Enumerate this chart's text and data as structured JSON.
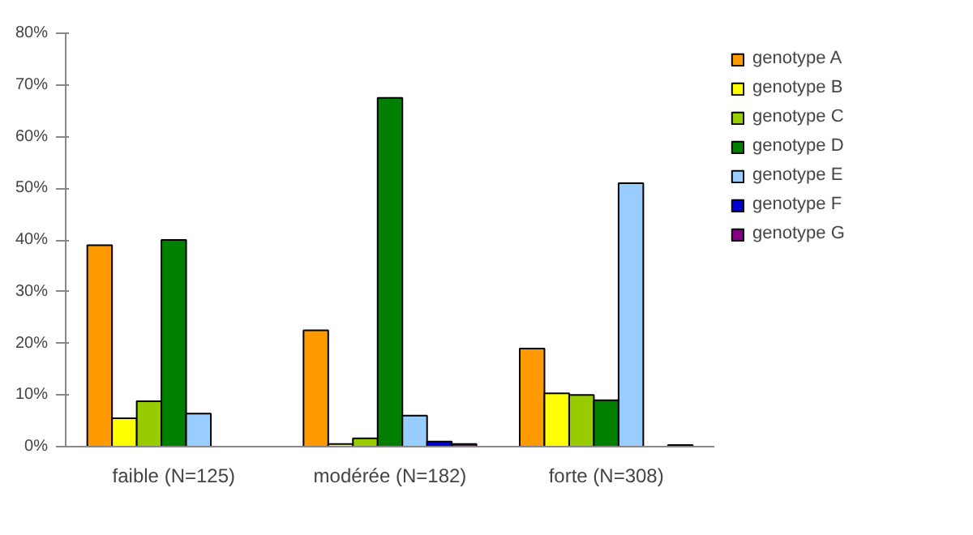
{
  "chart_data": {
    "type": "bar",
    "categories": [
      "faible (N=125)",
      "modérée (N=182)",
      "forte (N=308)"
    ],
    "series": [
      {
        "name": "genotype A",
        "color": "#ff9900",
        "values": [
          39,
          22.5,
          19
        ]
      },
      {
        "name": "genotype B",
        "color": "#ffff00",
        "values": [
          5.5,
          0.5,
          10.3
        ]
      },
      {
        "name": "genotype C",
        "color": "#99cc00",
        "values": [
          8.8,
          1.6,
          10
        ]
      },
      {
        "name": "genotype D",
        "color": "#008000",
        "values": [
          40,
          67.5,
          9
        ]
      },
      {
        "name": "genotype E",
        "color": "#99ccff",
        "values": [
          6.4,
          6,
          51
        ]
      },
      {
        "name": "genotype F",
        "color": "#0000cc",
        "values": [
          null,
          1,
          null
        ]
      },
      {
        "name": "genotype G",
        "color": "#800080",
        "values": [
          null,
          0.5,
          0.3
        ]
      }
    ],
    "ylim": [
      0,
      80
    ],
    "yticks": [
      {
        "value": 0,
        "label": "0%"
      },
      {
        "value": 10,
        "label": "10%"
      },
      {
        "value": 20,
        "label": "20%"
      },
      {
        "value": 30,
        "label": "30%"
      },
      {
        "value": 40,
        "label": "40%"
      },
      {
        "value": 50,
        "label": "50%"
      },
      {
        "value": 60,
        "label": "60%"
      },
      {
        "value": 70,
        "label": "70%"
      },
      {
        "value": 80,
        "label": "80%"
      }
    ],
    "grid": false,
    "legend": "right"
  }
}
